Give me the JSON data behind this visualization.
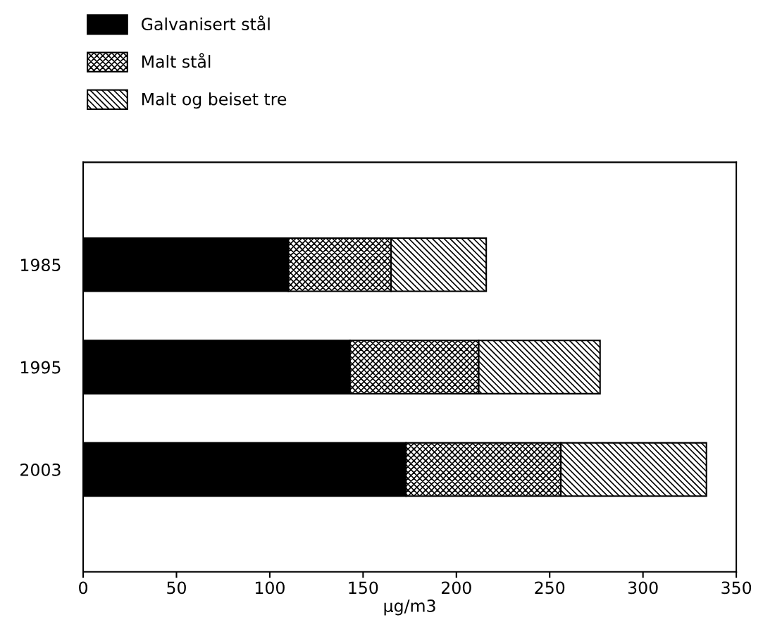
{
  "chart_data": {
    "type": "bar",
    "orientation": "horizontal",
    "stacked": true,
    "categories": [
      "1985",
      "1995",
      "2003"
    ],
    "series": [
      {
        "name": "Galvanisert stål",
        "color": "#000000",
        "values": [
          110,
          143,
          173
        ]
      },
      {
        "name": "Malt stål",
        "color": "#000000",
        "values": [
          55,
          69,
          83
        ]
      },
      {
        "name": "Malt og beiset tre",
        "color": "#000000",
        "values": [
          51,
          65,
          78
        ]
      }
    ],
    "xlabel": "µg/m3",
    "xlim": [
      0,
      350
    ],
    "xticks": [
      0,
      50,
      100,
      150,
      200,
      250,
      300,
      350
    ],
    "grid": false,
    "legend": "top left"
  }
}
